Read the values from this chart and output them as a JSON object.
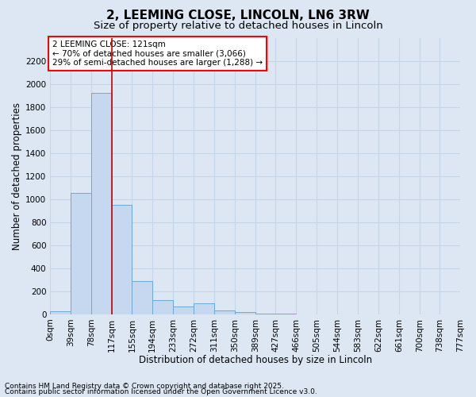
{
  "title": "2, LEEMING CLOSE, LINCOLN, LN6 3RW",
  "subtitle": "Size of property relative to detached houses in Lincoln",
  "xlabel": "Distribution of detached houses by size in Lincoln",
  "ylabel": "Number of detached properties",
  "annotation_line1": "2 LEEMING CLOSE: 121sqm",
  "annotation_line2": "← 70% of detached houses are smaller (3,066)",
  "annotation_line3": "29% of semi-detached houses are larger (1,288) →",
  "footer_line1": "Contains HM Land Registry data © Crown copyright and database right 2025.",
  "footer_line2": "Contains public sector information licensed under the Open Government Licence v3.0.",
  "bar_edges": [
    0,
    39,
    78,
    117,
    155,
    194,
    233,
    272,
    311,
    350,
    389,
    427,
    466,
    505,
    544,
    583,
    622,
    661,
    700,
    738,
    777
  ],
  "bar_labels": [
    "0sqm",
    "39sqm",
    "78sqm",
    "117sqm",
    "155sqm",
    "194sqm",
    "233sqm",
    "272sqm",
    "311sqm",
    "350sqm",
    "389sqm",
    "427sqm",
    "466sqm",
    "505sqm",
    "544sqm",
    "583sqm",
    "622sqm",
    "661sqm",
    "700sqm",
    "738sqm",
    "777sqm"
  ],
  "bar_heights": [
    25,
    1050,
    1920,
    950,
    290,
    120,
    70,
    95,
    35,
    20,
    7,
    3,
    2,
    1,
    1,
    0,
    0,
    0,
    0,
    0
  ],
  "bar_color": "#c5d8ef",
  "bar_edge_color": "#6aaad4",
  "vline_color": "#cc0000",
  "vline_x": 117,
  "ylim": [
    0,
    2400
  ],
  "yticks": [
    0,
    200,
    400,
    600,
    800,
    1000,
    1200,
    1400,
    1600,
    1800,
    2000,
    2200
  ],
  "grid_color": "#c5d5e8",
  "background_color": "#dce7f3",
  "title_fontsize": 11,
  "subtitle_fontsize": 9.5,
  "axis_label_fontsize": 8.5,
  "tick_fontsize": 7.5,
  "annotation_fontsize": 7.5,
  "footer_fontsize": 6.5
}
